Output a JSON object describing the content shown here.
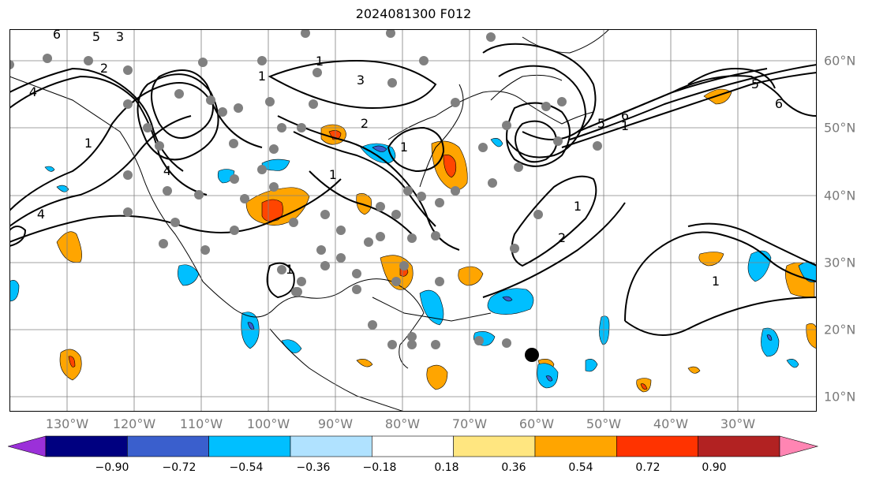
{
  "title": "2024081300 F012",
  "lon_labels": [
    "130°W",
    "120°W",
    "110°W",
    "100°W",
    "90°W",
    "80°W",
    "70°W",
    "60°W",
    "50°W",
    "40°W",
    "30°W"
  ],
  "lat_labels": [
    "60°N",
    "50°N",
    "40°N",
    "30°N",
    "20°N",
    "10°N"
  ],
  "colorbar": {
    "labels": [
      "−0.90",
      "−0.72",
      "−0.54",
      "−0.36",
      "−0.18",
      "0.18",
      "0.36",
      "0.54",
      "0.72",
      "0.90"
    ],
    "colors": [
      "#9b30d9",
      "#000080",
      "#3a5fcd",
      "#00bfff",
      "#b0e2ff",
      "#ffffff",
      "#ffe680",
      "#ffa500",
      "#ff3300",
      "#b22222",
      "#ff85b3"
    ]
  },
  "contour_labels": [
    "1",
    "1",
    "1",
    "1",
    "1",
    "1",
    "1",
    "2",
    "2",
    "3",
    "4",
    "5",
    "6",
    "6",
    "5",
    "1",
    "4",
    "6",
    "5",
    "3",
    "1",
    "2",
    "4"
  ],
  "colors": {
    "positive_fill": "#ffa500",
    "strong_positive": "#ff4500",
    "negative_fill": "#00bfff",
    "gridline": "#808080",
    "marker": "#808080"
  }
}
